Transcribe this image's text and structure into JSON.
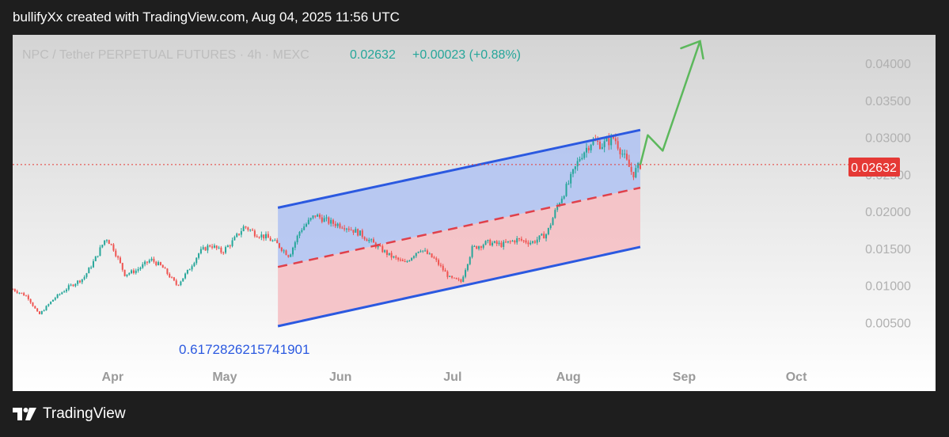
{
  "header": {
    "caption": "bullifyXx created with TradingView.com, Aug 04, 2025 11:56 UTC"
  },
  "footer": {
    "brand": "TradingView",
    "icon": "tradingview-logo-icon"
  },
  "chart_data": {
    "type": "candlestick",
    "legend": {
      "symbol_text": "NPC / Tether PERPETUAL FUTURES · 4h · MEXC",
      "last": "0.02632",
      "change": "+0.00023 (+0.88%)"
    },
    "price_label": "0.02632",
    "y_ticks": [
      "0.04000",
      "0.03500",
      "0.03000",
      "0.02500",
      "0.02000",
      "0.01500",
      "0.01000",
      "0.00500"
    ],
    "x_ticks": [
      "Apr",
      "May",
      "Jun",
      "Jul",
      "Aug",
      "Sep",
      "Oct"
    ],
    "annotation": "0.6172826215741901",
    "colors": {
      "up": "#26a69a",
      "down": "#ef5350",
      "channel_line": "#2b59e0",
      "mid_line": "#e0404a",
      "upper_fill": "#b3c4f2",
      "lower_fill": "#f5c0c4",
      "arrow": "#5cb85c",
      "price_line": "#e53935"
    },
    "price_series": [
      [
        "2025-03-01",
        0.0095
      ],
      [
        "2025-03-05",
        0.0085
      ],
      [
        "2025-03-08",
        0.006
      ],
      [
        "2025-03-12",
        0.0082
      ],
      [
        "2025-03-16",
        0.0098
      ],
      [
        "2025-03-20",
        0.011
      ],
      [
        "2025-03-23",
        0.0135
      ],
      [
        "2025-03-26",
        0.0165
      ],
      [
        "2025-03-28",
        0.015
      ],
      [
        "2025-03-31",
        0.0115
      ],
      [
        "2025-04-03",
        0.012
      ],
      [
        "2025-04-07",
        0.0135
      ],
      [
        "2025-04-10",
        0.0125
      ],
      [
        "2025-04-14",
        0.01
      ],
      [
        "2025-04-17",
        0.012
      ],
      [
        "2025-04-20",
        0.0145
      ],
      [
        "2025-04-23",
        0.0155
      ],
      [
        "2025-04-26",
        0.0145
      ],
      [
        "2025-04-29",
        0.016
      ],
      [
        "2025-05-02",
        0.018
      ],
      [
        "2025-05-05",
        0.017
      ],
      [
        "2025-05-08",
        0.0165
      ],
      [
        "2025-05-11",
        0.0155
      ],
      [
        "2025-05-14",
        0.014
      ],
      [
        "2025-05-17",
        0.0175
      ],
      [
        "2025-05-21",
        0.0195
      ],
      [
        "2025-05-25",
        0.0185
      ],
      [
        "2025-05-29",
        0.018
      ],
      [
        "2025-06-02",
        0.017
      ],
      [
        "2025-06-06",
        0.0155
      ],
      [
        "2025-06-10",
        0.014
      ],
      [
        "2025-06-14",
        0.013
      ],
      [
        "2025-06-18",
        0.015
      ],
      [
        "2025-06-22",
        0.0135
      ],
      [
        "2025-06-26",
        0.011
      ],
      [
        "2025-06-29",
        0.0105
      ],
      [
        "2025-07-02",
        0.015
      ],
      [
        "2025-07-06",
        0.0158
      ],
      [
        "2025-07-10",
        0.0155
      ],
      [
        "2025-07-14",
        0.0162
      ],
      [
        "2025-07-18",
        0.0158
      ],
      [
        "2025-07-22",
        0.017
      ],
      [
        "2025-07-25",
        0.021
      ],
      [
        "2025-07-28",
        0.024
      ],
      [
        "2025-07-31",
        0.0275
      ],
      [
        "2025-08-03",
        0.0295
      ],
      [
        "2025-08-06",
        0.029
      ],
      [
        "2025-08-09",
        0.03
      ],
      [
        "2025-08-12",
        0.027
      ],
      [
        "2025-08-14",
        0.025
      ],
      [
        "2025-08-16",
        0.0263
      ]
    ],
    "channel": {
      "upper": [
        [
          "2025-05-11",
          0.0205
        ],
        [
          "2025-08-16",
          0.031
        ]
      ],
      "middle": [
        [
          "2025-05-11",
          0.0125
        ],
        [
          "2025-08-16",
          0.0232
        ]
      ],
      "lower": [
        [
          "2025-05-11",
          0.0045
        ],
        [
          "2025-08-16",
          0.0152
        ]
      ]
    },
    "projection_arrow": [
      [
        "2025-08-16",
        0.0263
      ],
      [
        "2025-08-18",
        0.0303
      ],
      [
        "2025-08-22",
        0.0282
      ],
      [
        "2025-09-01",
        0.043
      ]
    ]
  }
}
